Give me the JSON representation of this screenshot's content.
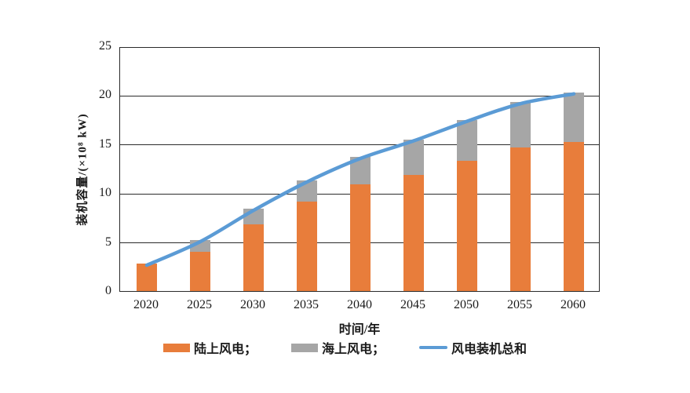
{
  "chart_data": {
    "type": "bar",
    "subtype": "stacked-bar-with-line-overlay",
    "title": "",
    "xlabel": "时间/年",
    "ylabel": "装机容量/(×10⁸ kW)",
    "categories": [
      "2020",
      "2025",
      "2030",
      "2035",
      "2040",
      "2045",
      "2050",
      "2055",
      "2060"
    ],
    "series": [
      {
        "name": "陆上风电",
        "legend_label": "陆上风电；",
        "kind": "bar",
        "color": "#E87D3B",
        "values": [
          2.8,
          4.0,
          6.8,
          9.1,
          10.9,
          11.9,
          13.3,
          14.7,
          15.2
        ]
      },
      {
        "name": "海上风电",
        "legend_label": "海上风电；",
        "kind": "bar",
        "color": "#A6A6A6",
        "values": [
          0,
          1.2,
          1.6,
          2.2,
          2.8,
          3.6,
          4.2,
          4.6,
          5.1
        ]
      },
      {
        "name": "风电装机总和",
        "legend_label": "风电装机总和",
        "kind": "line",
        "color": "#5B9BD5",
        "values": [
          2.8,
          5.2,
          8.4,
          11.3,
          13.7,
          15.5,
          17.5,
          19.3,
          20.3
        ]
      }
    ],
    "ylim": [
      0,
      25
    ],
    "yticks": [
      0,
      5,
      10,
      15,
      20,
      25
    ],
    "grid": true,
    "grid_color": "#2b2b2b",
    "legend_position": "bottom",
    "axis_color": "#2b2b2b",
    "line_width": 4.5
  }
}
